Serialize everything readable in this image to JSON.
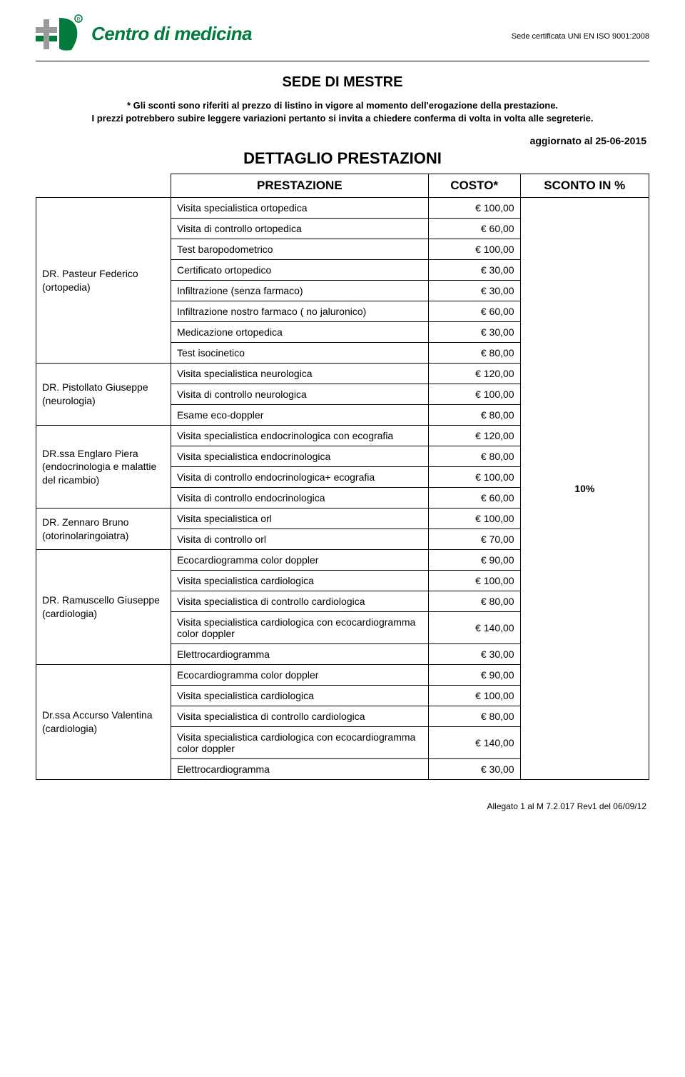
{
  "header": {
    "logo_text": "Centro di medicina",
    "cert_text": "Sede certificata UNI EN ISO 9001:2008",
    "logo_colors": {
      "green": "#007a3d",
      "grey": "#9a9a9a"
    }
  },
  "title": "SEDE DI MESTRE",
  "disclaimer": "* Gli sconti sono riferiti al prezzo di listino in vigore al momento dell'erogazione della prestazione.\nI prezzi potrebbero subire leggere variazioni pertanto si invita  a chiedere conferma di volta in volta alle segreterie.",
  "updated_label": "aggiornato al 25-06-2015",
  "subtitle": "DETTAGLIO PRESTAZIONI",
  "columns": {
    "prestazione": "PRESTAZIONE",
    "costo": "COSTO*",
    "sconto": "SCONTO IN %"
  },
  "discount": "10%",
  "doctors": [
    {
      "name": "DR. Pasteur Federico (ortopedia)",
      "rows": [
        {
          "p": "Visita specialistica ortopedica",
          "c": "€ 100,00"
        },
        {
          "p": "Visita di controllo ortopedica",
          "c": "€ 60,00"
        },
        {
          "p": "Test baropodometrico",
          "c": "€ 100,00"
        },
        {
          "p": "Certificato ortopedico",
          "c": "€ 30,00"
        },
        {
          "p": "Infiltrazione (senza farmaco)",
          "c": "€ 30,00"
        },
        {
          "p": "Infiltrazione nostro farmaco ( no jaluronico)",
          "c": "€ 60,00"
        },
        {
          "p": "Medicazione ortopedica",
          "c": "€ 30,00"
        },
        {
          "p": "Test isocinetico",
          "c": "€ 80,00"
        }
      ]
    },
    {
      "name": "DR. Pistollato Giuseppe (neurologia)",
      "rows": [
        {
          "p": "Visita specialistica neurologica",
          "c": "€ 120,00"
        },
        {
          "p": "Visita di controllo neurologica",
          "c": "€ 100,00"
        },
        {
          "p": "Esame eco-doppler",
          "c": "€ 80,00"
        }
      ]
    },
    {
      "name": "DR.ssa Englaro Piera (endocrinologia e malattie del ricambio)",
      "rows": [
        {
          "p": "Visita specialistica endocrinologica con ecografia",
          "c": "€ 120,00"
        },
        {
          "p": "Visita specialistica endocrinologica",
          "c": "€ 80,00"
        },
        {
          "p": "Visita di controllo endocrinologica+ ecografia",
          "c": "€ 100,00"
        },
        {
          "p": "Visita di controllo endocrinologica",
          "c": "€ 60,00"
        }
      ]
    },
    {
      "name": "DR. Zennaro Bruno (otorinolaringoiatra)",
      "rows": [
        {
          "p": "Visita specialistica orl",
          "c": "€ 100,00"
        },
        {
          "p": "Visita di controllo orl",
          "c": "€ 70,00"
        }
      ]
    },
    {
      "name": "DR. Ramuscello Giuseppe (cardiologia)",
      "rows": [
        {
          "p": "Ecocardiogramma color doppler",
          "c": "€ 90,00"
        },
        {
          "p": "Visita specialistica cardiologica",
          "c": "€ 100,00"
        },
        {
          "p": "Visita specialistica di controllo cardiologica",
          "c": "€ 80,00"
        },
        {
          "p": "Visita specialistica cardiologica con ecocardiogramma color doppler",
          "c": "€ 140,00"
        },
        {
          "p": "Elettrocardiogramma",
          "c": "€ 30,00"
        }
      ]
    },
    {
      "name": "Dr.ssa Accurso Valentina (cardiologia)",
      "rows": [
        {
          "p": "Ecocardiogramma color doppler",
          "c": "€ 90,00"
        },
        {
          "p": "Visita specialistica cardiologica",
          "c": "€ 100,00"
        },
        {
          "p": "Visita specialistica di controllo cardiologica",
          "c": "€ 80,00"
        },
        {
          "p": "Visita specialistica cardiologica con ecocardiogramma color doppler",
          "c": "€ 140,00"
        },
        {
          "p": "Elettrocardiogramma",
          "c": "€ 30,00"
        }
      ]
    }
  ],
  "footer": "Allegato 1 al M 7.2.017 Rev1 del 06/09/12"
}
